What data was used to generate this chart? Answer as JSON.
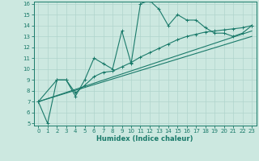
{
  "xlabel": "Humidex (Indice chaleur)",
  "bg_color": "#cce8e0",
  "line_color": "#1a7a6a",
  "grid_color": "#b0d4cc",
  "xlim": [
    -0.5,
    23.5
  ],
  "ylim": [
    4.8,
    16.2
  ],
  "xticks": [
    0,
    1,
    2,
    3,
    4,
    5,
    6,
    7,
    8,
    9,
    10,
    11,
    12,
    13,
    14,
    15,
    16,
    17,
    18,
    19,
    20,
    21,
    22,
    23
  ],
  "yticks": [
    5,
    6,
    7,
    8,
    9,
    10,
    11,
    12,
    13,
    14,
    15,
    16
  ],
  "curve1_x": [
    0,
    1,
    2,
    3,
    4,
    5,
    6,
    7,
    8,
    9,
    10,
    11,
    12,
    13,
    14,
    15,
    16,
    17,
    18,
    19,
    20,
    21,
    22,
    23
  ],
  "curve1_y": [
    7,
    5,
    9,
    9,
    7.5,
    9,
    11,
    10.5,
    10,
    13.5,
    10.5,
    16.0,
    16.3,
    15.5,
    14.0,
    15.0,
    14.5,
    14.5,
    13.8,
    13.3,
    13.3,
    13.0,
    13.3,
    14.0
  ],
  "curve2_x": [
    0,
    2,
    3,
    4,
    5,
    6,
    7,
    8,
    9,
    10,
    11,
    12,
    13,
    14,
    15,
    16,
    17,
    18,
    19,
    20,
    21,
    22,
    23
  ],
  "curve2_y": [
    7,
    9,
    9,
    7.8,
    8.5,
    9.3,
    9.7,
    9.8,
    10.2,
    10.6,
    11.1,
    11.5,
    11.9,
    12.3,
    12.7,
    13.0,
    13.2,
    13.4,
    13.5,
    13.6,
    13.7,
    13.8,
    14.0
  ],
  "line1_x": [
    0,
    23
  ],
  "line1_y": [
    7,
    13.5
  ],
  "line2_x": [
    0,
    23
  ],
  "line2_y": [
    7,
    13.0
  ]
}
